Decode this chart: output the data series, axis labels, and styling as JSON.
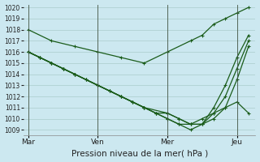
{
  "bg_color": "#cce8f0",
  "grid_color": "#aacccc",
  "line_color": "#1a5c1a",
  "ylim_min": 1009,
  "ylim_max": 1020,
  "yticks": [
    1009,
    1010,
    1011,
    1012,
    1013,
    1014,
    1015,
    1016,
    1017,
    1018,
    1019,
    1020
  ],
  "xlabel": "Pression niveau de la mer( hPa )",
  "xtick_labels": [
    "Mar",
    "Ven",
    "Mer",
    "Jeu"
  ],
  "xtick_positions": [
    0,
    3,
    6,
    9
  ],
  "vline_positions": [
    0,
    3,
    6,
    9
  ],
  "lines": [
    {
      "x": [
        0,
        1,
        2,
        3,
        4,
        5,
        6,
        7,
        7.5,
        8,
        8.5,
        9,
        9.5
      ],
      "y": [
        1018,
        1017,
        1016.5,
        1016,
        1015.5,
        1015,
        1016,
        1017,
        1017.5,
        1018.5,
        1019,
        1019.5,
        1020
      ]
    },
    {
      "x": [
        0,
        0.5,
        1,
        1.5,
        2,
        3,
        4,
        5,
        6,
        6.5,
        7,
        7.5,
        8,
        8.5,
        9,
        9.5
      ],
      "y": [
        1016,
        1015.5,
        1015,
        1014.5,
        1014,
        1013,
        1012,
        1011,
        1010.5,
        1010,
        1009.5,
        1010,
        1010.5,
        1011,
        1011.5,
        1010.5
      ]
    },
    {
      "x": [
        0,
        0.5,
        1,
        1.5,
        2,
        2.5,
        3,
        3.5,
        4,
        4.5,
        5,
        5.5,
        6,
        6.5,
        7,
        7.5,
        8,
        8.5,
        9,
        9.5
      ],
      "y": [
        1016,
        1015.5,
        1015,
        1014.5,
        1014,
        1013.5,
        1013,
        1012.5,
        1012,
        1011.5,
        1011,
        1010.5,
        1010.5,
        1010,
        1009.5,
        1009.5,
        1011,
        1013,
        1015.5,
        1017.5
      ]
    },
    {
      "x": [
        0,
        0.5,
        1,
        1.5,
        2,
        2.5,
        3,
        3.5,
        4,
        4.5,
        5,
        5.5,
        6,
        6.5,
        7,
        7.5,
        8,
        8.5,
        9,
        9.5
      ],
      "y": [
        1016,
        1015.5,
        1015,
        1014.5,
        1014,
        1013.5,
        1013,
        1012.5,
        1012,
        1011.5,
        1011,
        1010.5,
        1010,
        1009.5,
        1009,
        1009.5,
        1010.5,
        1012,
        1014.5,
        1017
      ]
    },
    {
      "x": [
        0,
        0.5,
        1,
        1.5,
        2,
        2.5,
        3,
        3.5,
        4,
        4.5,
        5,
        5.5,
        6,
        6.5,
        7,
        7.5,
        8,
        8.5,
        9,
        9.5
      ],
      "y": [
        1016,
        1015.5,
        1015,
        1014.5,
        1014,
        1013.5,
        1013,
        1012.5,
        1012,
        1011.5,
        1011,
        1010.5,
        1010,
        1009.5,
        1009.5,
        1009.5,
        1010.0,
        1011.0,
        1013.5,
        1016.5
      ]
    }
  ]
}
